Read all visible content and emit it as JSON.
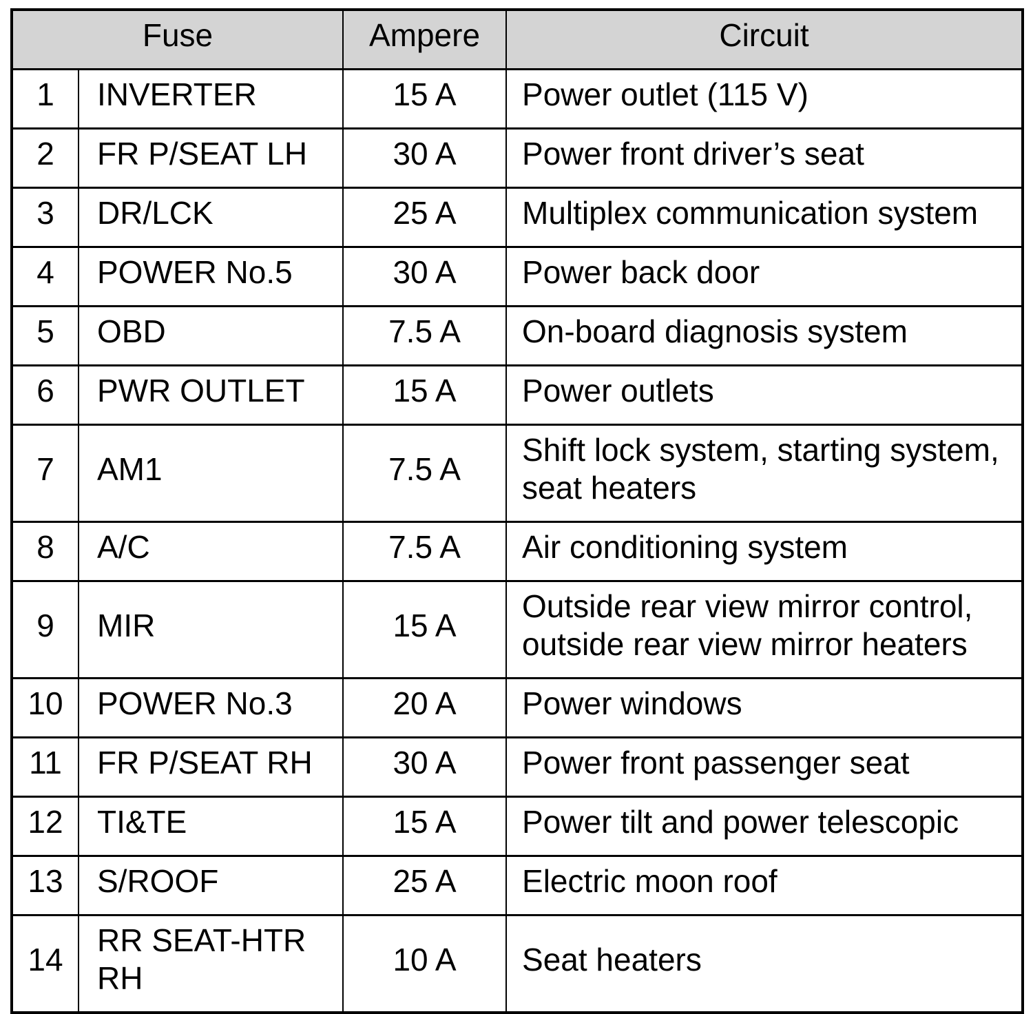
{
  "header": {
    "fuse": "Fuse",
    "ampere": "Ampere",
    "circuit": "Circuit"
  },
  "rows": [
    {
      "num": "1",
      "fuse": "INVERTER",
      "ampere": "15 A",
      "circuit": "Power outlet (115 V)"
    },
    {
      "num": "2",
      "fuse": "FR P/SEAT LH",
      "ampere": "30 A",
      "circuit": "Power front driver’s seat"
    },
    {
      "num": "3",
      "fuse": "DR/LCK",
      "ampere": "25 A",
      "circuit": "Multiplex communication system"
    },
    {
      "num": "4",
      "fuse": "POWER No.5",
      "ampere": "30 A",
      "circuit": "Power back door"
    },
    {
      "num": "5",
      "fuse": "OBD",
      "ampere": "7.5 A",
      "circuit": "On-board diagnosis system"
    },
    {
      "num": "6",
      "fuse": "PWR OUTLET",
      "ampere": "15 A",
      "circuit": "Power outlets"
    },
    {
      "num": "7",
      "fuse": "AM1",
      "ampere": "7.5 A",
      "circuit": "Shift lock system, starting system, seat heaters"
    },
    {
      "num": "8",
      "fuse": "A/C",
      "ampere": "7.5 A",
      "circuit": "Air conditioning system"
    },
    {
      "num": "9",
      "fuse": "MIR",
      "ampere": "15 A",
      "circuit": "Outside rear view mirror control, outside rear view mirror heaters"
    },
    {
      "num": "10",
      "fuse": "POWER No.3",
      "ampere": "20 A",
      "circuit": "Power windows"
    },
    {
      "num": "11",
      "fuse": "FR P/SEAT RH",
      "ampere": "30 A",
      "circuit": "Power front passenger seat"
    },
    {
      "num": "12",
      "fuse": "TI&TE",
      "ampere": "15 A",
      "circuit": "Power tilt and power telescopic"
    },
    {
      "num": "13",
      "fuse": "S/ROOF",
      "ampere": "25 A",
      "circuit": "Electric moon roof"
    },
    {
      "num": "14",
      "fuse": "RR SEAT-HTR RH",
      "ampere": "10 A",
      "circuit": "Seat heaters"
    }
  ],
  "colors": {
    "header_bg": "#d4d4d4",
    "border": "#000000",
    "text": "#000000",
    "page_bg": "#ffffff"
  }
}
